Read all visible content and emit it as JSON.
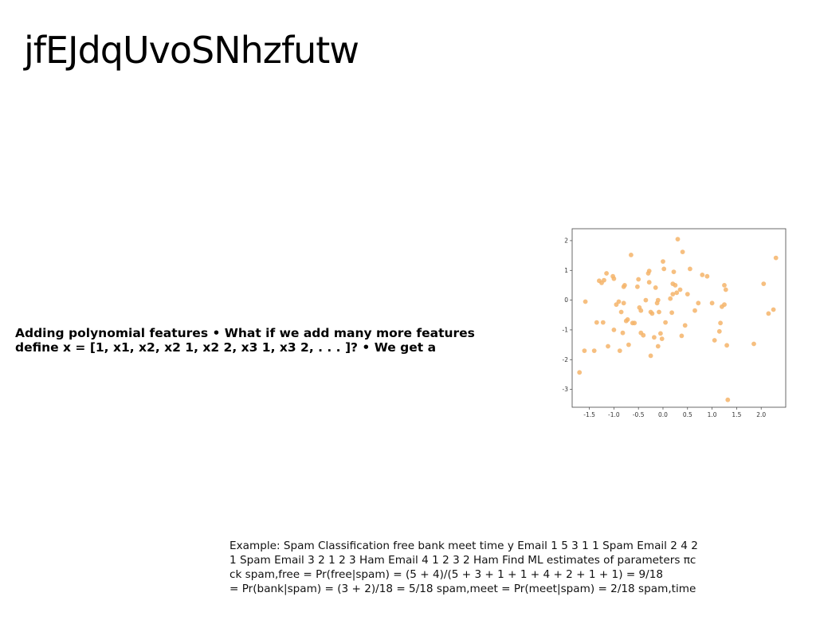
{
  "slide": {
    "title": "jfEJdqUvoSNhzfutw"
  },
  "polynomial": {
    "line1": "Adding polynomial features • What if we add many more features",
    "line2": "define x = [1, x1, x2, x2 1, x2 2, x3 1, x3 2, . . . ]? • We get a"
  },
  "spam_example": {
    "line1": "Example: Spam Classification free bank meet time y Email 1 5 3 1 1 Spam Email 2 4 2",
    "line2": "1 Spam Email 3 2 1 2 3 Ham Email 4 1 2 3 2 Ham Find ML estimates of parameters πc",
    "line3": "ck spam,free = Pr(free|spam) = (5 + 4)/(5 + 3 + 1 + 1 + 4 + 2 + 1 + 1) = 9/18",
    "line4": "= Pr(bank|spam) = (3 + 2)/18 = 5/18 spam,meet = Pr(meet|spam) = 2/18 spam,time"
  },
  "chart_data": {
    "type": "scatter",
    "title": "",
    "xlabel": "",
    "ylabel": "",
    "xlim": [
      -1.85,
      2.5
    ],
    "ylim": [
      -3.6,
      2.4
    ],
    "xticks": [
      "-1.5",
      "-1.0",
      "-0.5",
      "0.0",
      "0.5",
      "1.0",
      "1.5",
      "2.0"
    ],
    "xtick_values": [
      -1.5,
      -1.0,
      -0.5,
      0.0,
      0.5,
      1.0,
      1.5,
      2.0
    ],
    "yticks": [
      "2",
      "1",
      "0",
      "-1",
      "-2",
      "-3"
    ],
    "ytick_values": [
      2,
      1,
      0,
      -1,
      -2,
      -3
    ],
    "grid": false,
    "marker_color": "#f4b46a",
    "points": [
      [
        -1.7,
        -2.43
      ],
      [
        -1.6,
        -1.7
      ],
      [
        -1.58,
        -0.05
      ],
      [
        -1.4,
        -1.7
      ],
      [
        -1.35,
        -0.75
      ],
      [
        -1.3,
        0.65
      ],
      [
        -1.25,
        0.58
      ],
      [
        -1.22,
        -0.75
      ],
      [
        -1.2,
        0.67
      ],
      [
        -1.15,
        0.9
      ],
      [
        -1.12,
        -1.55
      ],
      [
        -1.02,
        0.8
      ],
      [
        -1.0,
        0.72
      ],
      [
        -1.0,
        -1.0
      ],
      [
        -0.95,
        -0.15
      ],
      [
        -0.9,
        -0.05
      ],
      [
        -0.88,
        -1.7
      ],
      [
        -0.85,
        -0.4
      ],
      [
        -0.82,
        -1.1
      ],
      [
        -0.8,
        -0.1
      ],
      [
        -0.8,
        0.45
      ],
      [
        -0.78,
        0.5
      ],
      [
        -0.75,
        -0.7
      ],
      [
        -0.72,
        -0.65
      ],
      [
        -0.7,
        -1.5
      ],
      [
        -0.65,
        1.52
      ],
      [
        -0.62,
        -0.77
      ],
      [
        -0.58,
        -0.77
      ],
      [
        -0.52,
        0.45
      ],
      [
        -0.5,
        0.7
      ],
      [
        -0.48,
        -0.25
      ],
      [
        -0.45,
        -1.1
      ],
      [
        -0.45,
        -0.35
      ],
      [
        -0.4,
        -1.18
      ],
      [
        -0.35,
        0.0
      ],
      [
        -0.3,
        0.9
      ],
      [
        -0.28,
        0.98
      ],
      [
        -0.28,
        0.6
      ],
      [
        -0.25,
        -1.87
      ],
      [
        -0.25,
        -0.4
      ],
      [
        -0.22,
        -0.45
      ],
      [
        -0.18,
        -1.25
      ],
      [
        -0.15,
        0.42
      ],
      [
        -0.12,
        -0.1
      ],
      [
        -0.1,
        0.0
      ],
      [
        -0.1,
        -1.55
      ],
      [
        -0.08,
        -0.4
      ],
      [
        -0.05,
        -1.12
      ],
      [
        -0.02,
        -1.3
      ],
      [
        0.0,
        1.3
      ],
      [
        0.02,
        1.05
      ],
      [
        0.05,
        -0.75
      ],
      [
        0.15,
        0.05
      ],
      [
        0.18,
        -0.42
      ],
      [
        0.2,
        0.55
      ],
      [
        0.2,
        0.2
      ],
      [
        0.22,
        0.95
      ],
      [
        0.25,
        0.5
      ],
      [
        0.28,
        0.25
      ],
      [
        0.3,
        2.05
      ],
      [
        0.35,
        0.35
      ],
      [
        0.38,
        -1.2
      ],
      [
        0.4,
        1.62
      ],
      [
        0.45,
        -0.85
      ],
      [
        0.5,
        0.2
      ],
      [
        0.55,
        1.05
      ],
      [
        0.65,
        -0.35
      ],
      [
        0.72,
        -0.1
      ],
      [
        0.8,
        0.85
      ],
      [
        0.9,
        0.8
      ],
      [
        1.0,
        -0.1
      ],
      [
        1.05,
        -1.35
      ],
      [
        1.15,
        -1.05
      ],
      [
        1.17,
        -0.77
      ],
      [
        1.2,
        -0.22
      ],
      [
        1.25,
        0.5
      ],
      [
        1.25,
        -0.15
      ],
      [
        1.28,
        0.35
      ],
      [
        1.3,
        -1.52
      ],
      [
        1.32,
        -3.35
      ],
      [
        1.85,
        -1.47
      ],
      [
        2.05,
        0.55
      ],
      [
        2.15,
        -0.45
      ],
      [
        2.25,
        -0.32
      ],
      [
        2.3,
        1.42
      ]
    ]
  }
}
